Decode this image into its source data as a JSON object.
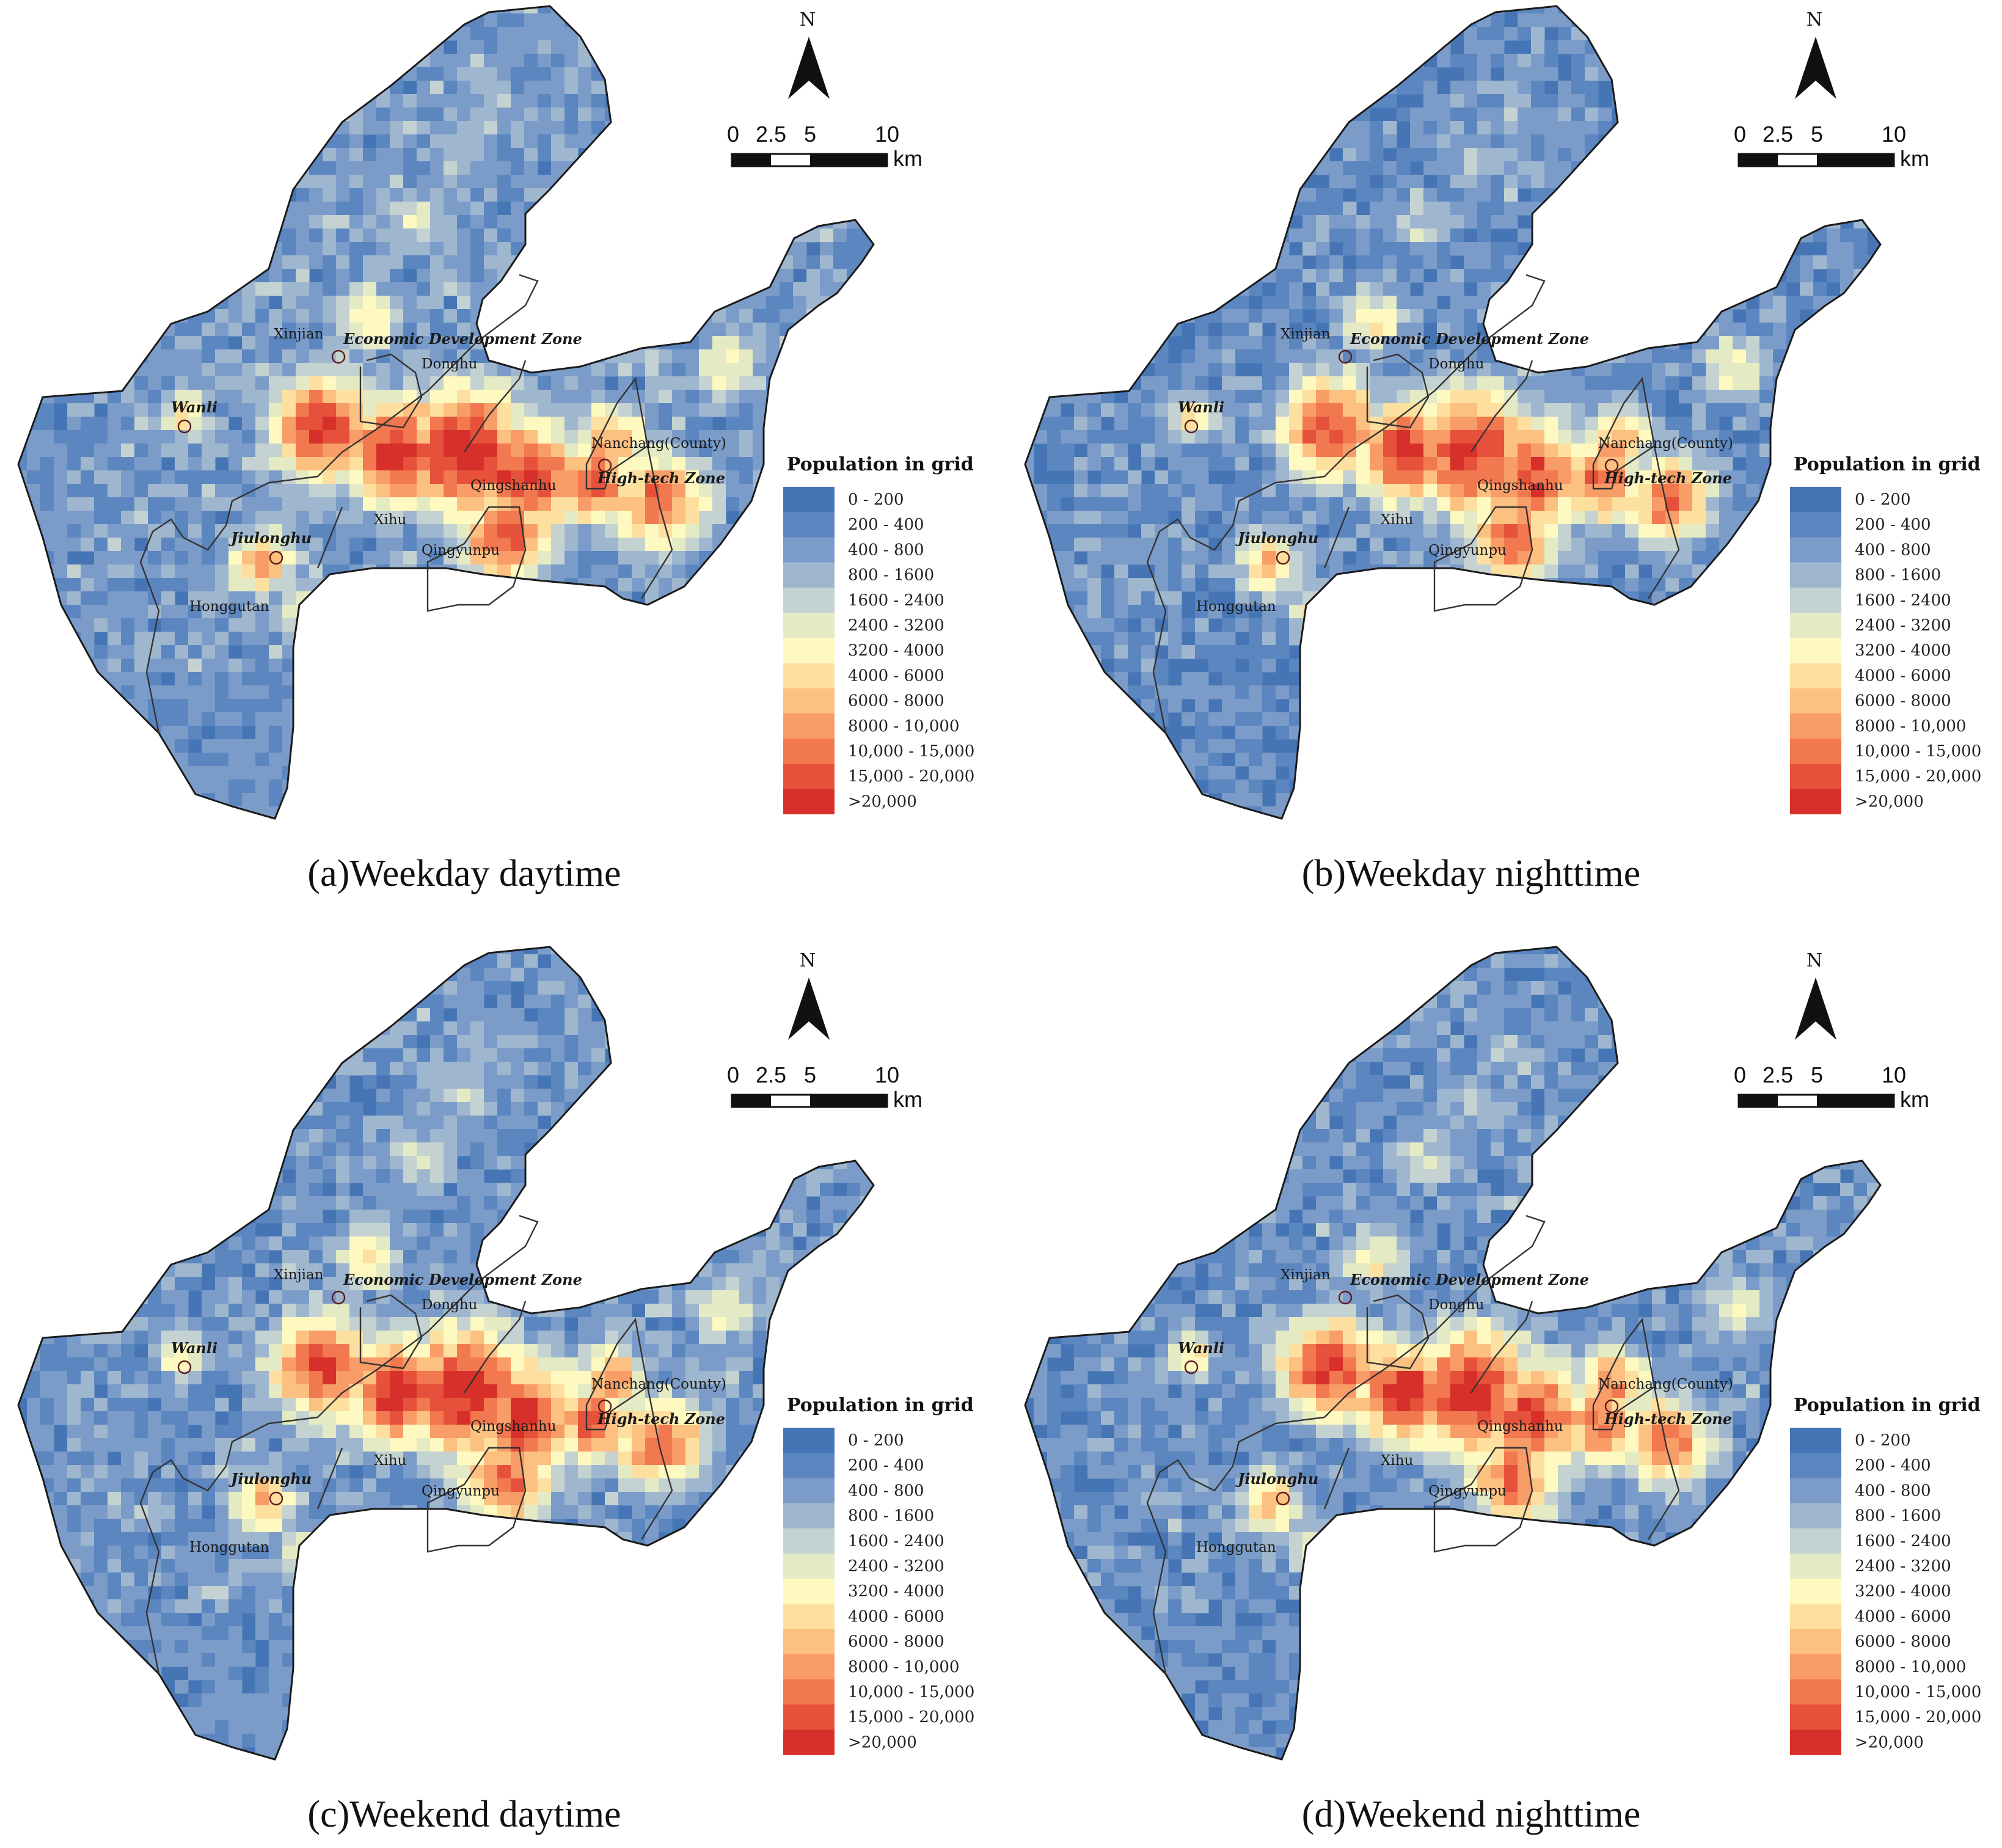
{
  "panels": [
    {
      "caption": "(a)Weekday daytime",
      "variant": "wd_day"
    },
    {
      "caption": "(b)Weekday nighttime",
      "variant": "wd_night"
    },
    {
      "caption": "(c)Weekend daytime",
      "variant": "we_day"
    },
    {
      "caption": "(d)Weekend nighttime",
      "variant": "we_night"
    }
  ],
  "legend": {
    "title": "Population in grid",
    "classes": [
      {
        "label": "0 - 200",
        "color": "#4575b4"
      },
      {
        "label": "200 - 400",
        "color": "#5b86c0"
      },
      {
        "label": "400 - 800",
        "color": "#7b9cc9"
      },
      {
        "label": "800 - 1600",
        "color": "#9fb6cf"
      },
      {
        "label": "1600 - 2400",
        "color": "#c4d3d1"
      },
      {
        "label": "2400 - 3200",
        "color": "#e4ebc4"
      },
      {
        "label": "3200 - 4000",
        "color": "#fdf9c0"
      },
      {
        "label": "4000 - 6000",
        "color": "#fde0a0"
      },
      {
        "label": "6000 - 8000",
        "color": "#fcc080"
      },
      {
        "label": "8000 - 10,000",
        "color": "#f89c68"
      },
      {
        "label": "10,000 - 15,000",
        "color": "#f2784f"
      },
      {
        "label": "15,000 - 20,000",
        "color": "#e5513a"
      },
      {
        "label": ">20,000",
        "color": "#d7302a"
      }
    ]
  },
  "north_arrow": {
    "label": "N"
  },
  "scale_bar": {
    "ticks": [
      "0",
      "2.5",
      "5",
      "10"
    ],
    "unit": "km"
  },
  "places": [
    {
      "name": "Xinjian",
      "style": "normal",
      "circle": false
    },
    {
      "name": "Economic Development Zone",
      "style": "italic-bold",
      "circle": true
    },
    {
      "name": "Donghu",
      "style": "normal",
      "circle": false
    },
    {
      "name": "Wanli",
      "style": "italic-bold",
      "circle": true
    },
    {
      "name": "Nanchang(County)",
      "style": "normal",
      "circle": false
    },
    {
      "name": "High-tech Zone",
      "style": "italic-bold",
      "circle": true
    },
    {
      "name": "Qingshanhu",
      "style": "normal",
      "circle": false
    },
    {
      "name": "Xihu",
      "style": "normal",
      "circle": false
    },
    {
      "name": "Jiulonghu",
      "style": "italic-bold",
      "circle": true
    },
    {
      "name": "Qingyunpu",
      "style": "normal",
      "circle": false
    },
    {
      "name": "Honggutan",
      "style": "normal",
      "circle": false
    }
  ]
}
